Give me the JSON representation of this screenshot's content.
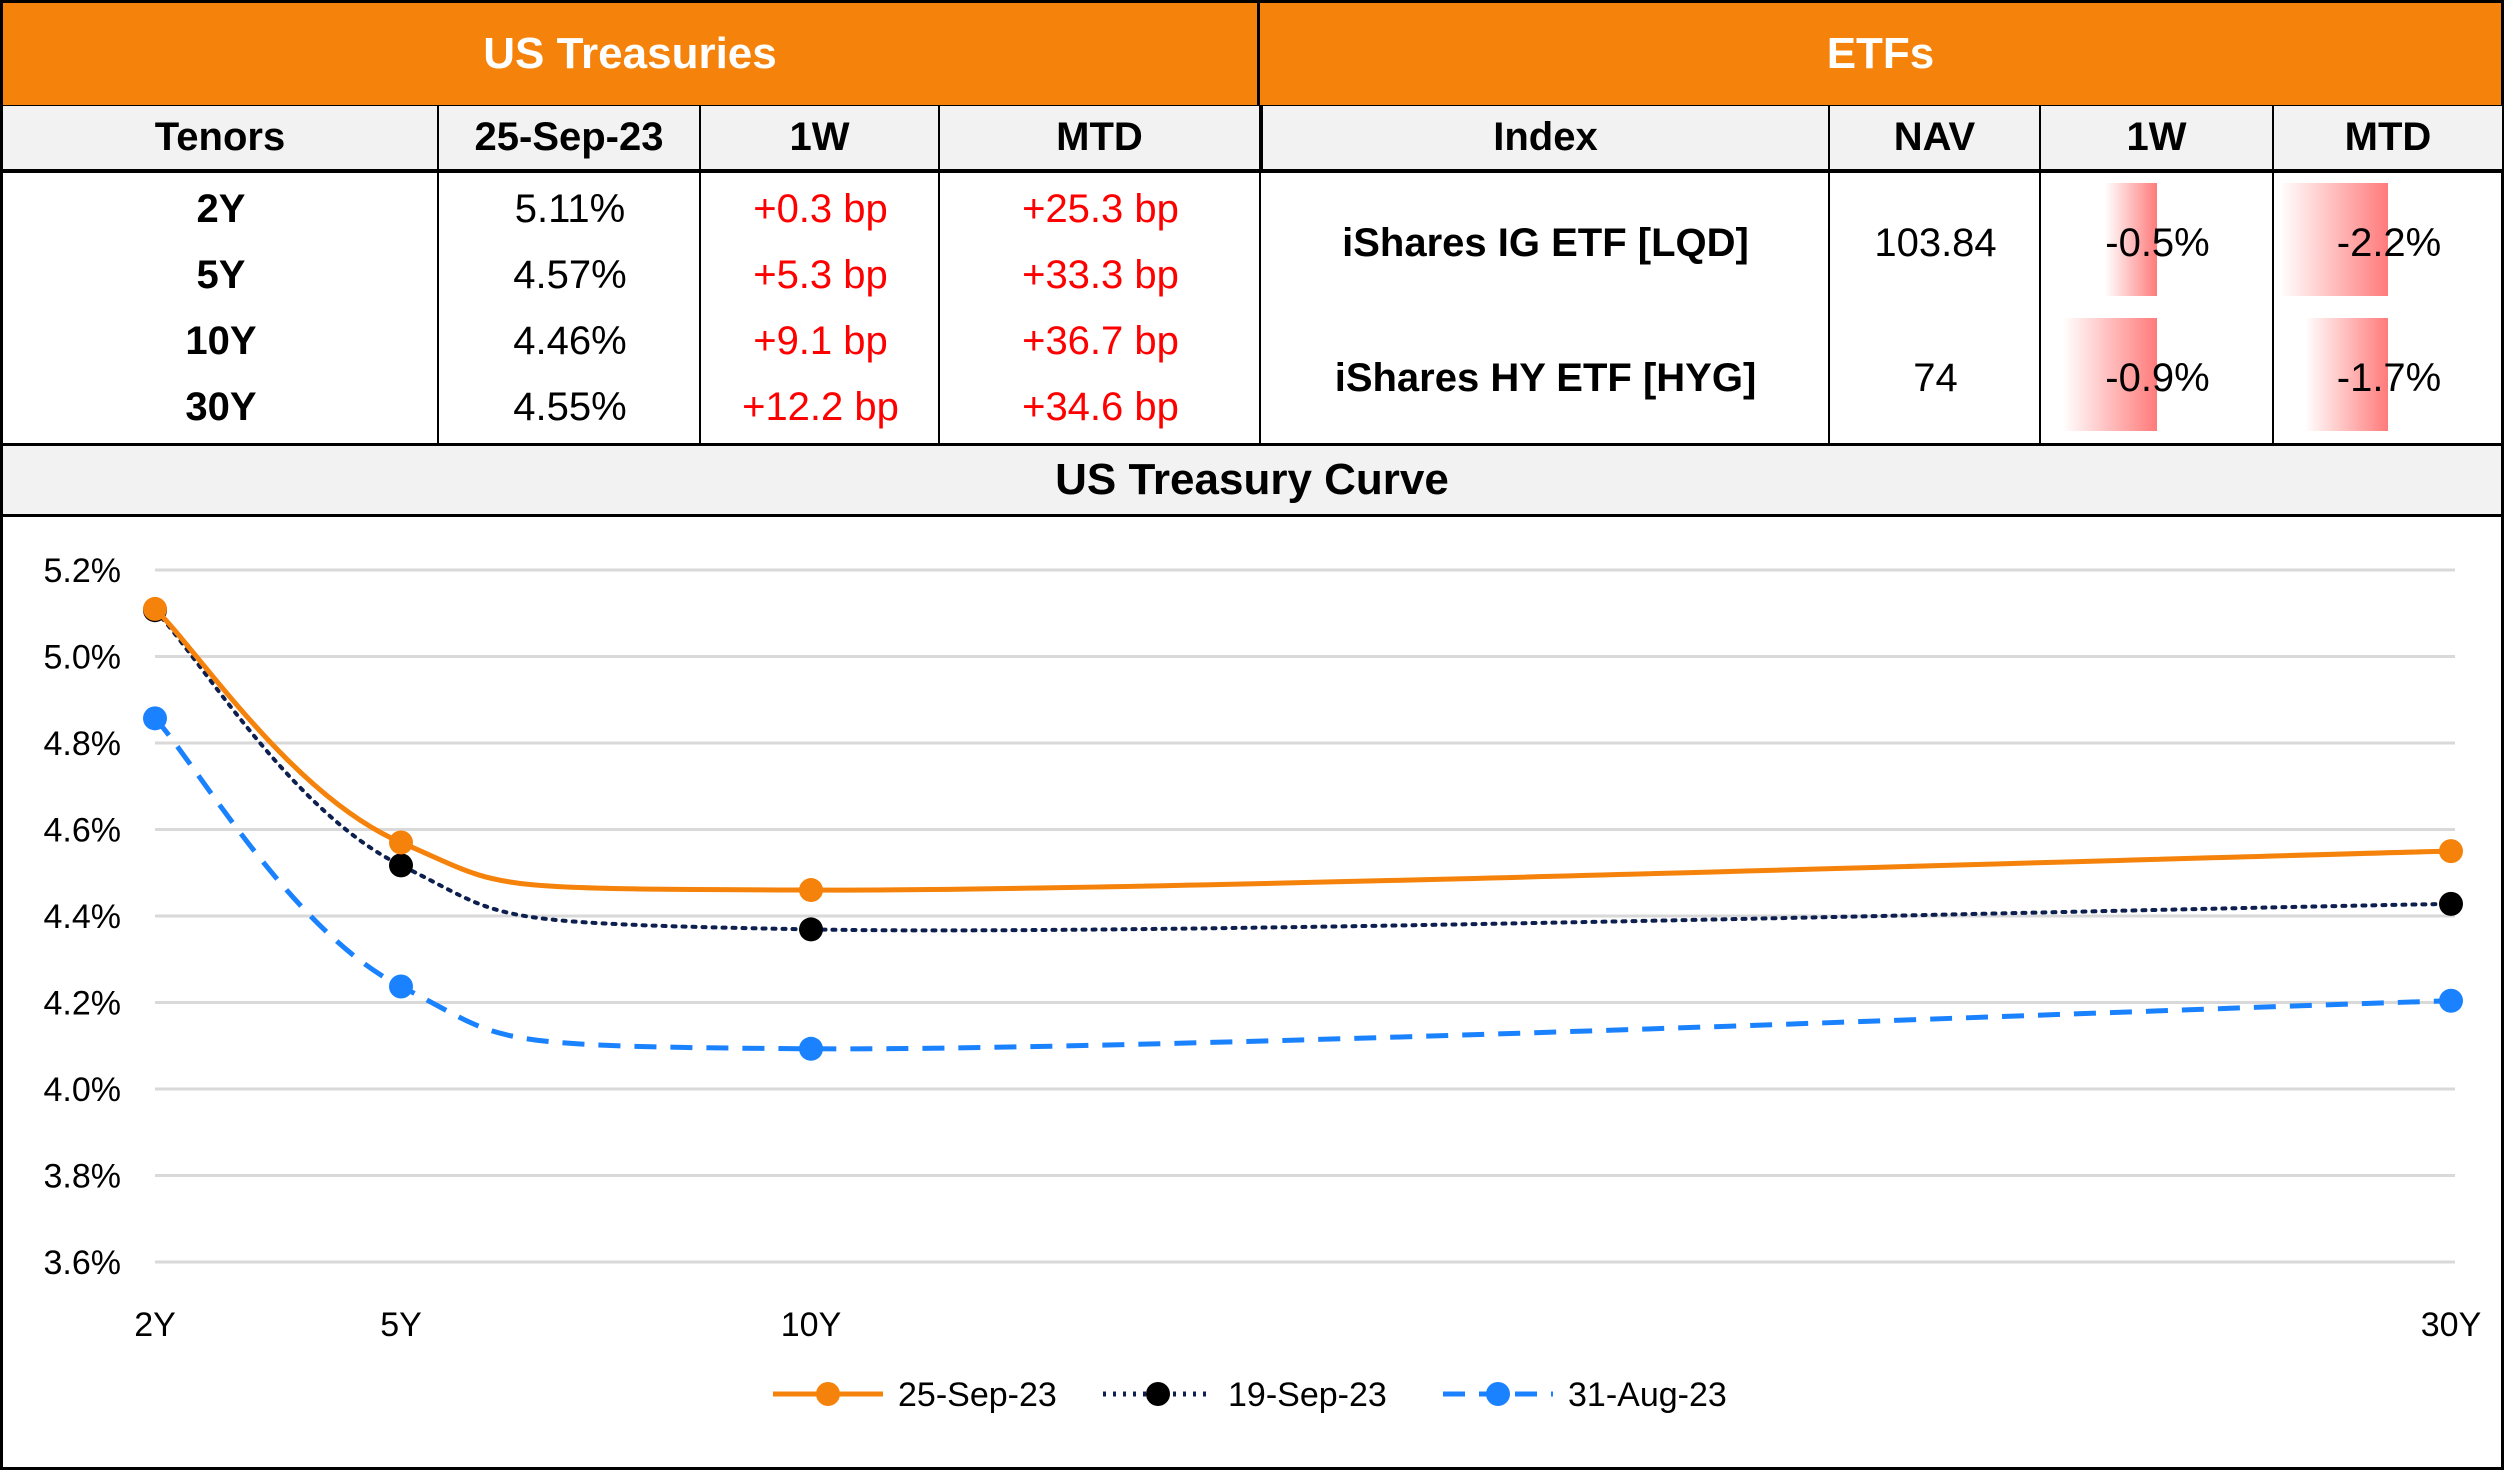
{
  "treasuries": {
    "title": "US Treasuries",
    "headers": [
      "Tenors",
      "25-Sep-23",
      "1W",
      "MTD"
    ],
    "rows": [
      [
        "2Y",
        "5.11%",
        "+0.3 bp",
        "+25.3 bp"
      ],
      [
        "5Y",
        "4.57%",
        "+5.3 bp",
        "+33.3 bp"
      ],
      [
        "10Y",
        "4.46%",
        "+9.1 bp",
        "+36.7 bp"
      ],
      [
        "30Y",
        "4.55%",
        "+12.2 bp",
        "+34.6 bp"
      ]
    ]
  },
  "etfs": {
    "title": "ETFs",
    "headers": [
      "Index",
      "NAV",
      "1W",
      "MTD"
    ],
    "rows": [
      {
        "name": "iShares IG ETF [LQD]",
        "nav": "103.84",
        "w1": "-0.5%",
        "mtd": "-2.2%",
        "w1_val": -0.5,
        "mtd_val": -2.2
      },
      {
        "name": "iShares HY ETF [HYG]",
        "nav": "74",
        "w1": "-0.9%",
        "mtd": "-1.7%",
        "w1_val": -0.9,
        "mtd_val": -1.7
      }
    ]
  },
  "chart_data": {
    "type": "line",
    "title": "US Treasury Curve",
    "categories": [
      "2Y",
      "5Y",
      "10Y",
      "30Y"
    ],
    "x": [
      2,
      5,
      10,
      30
    ],
    "ylim": [
      3.6,
      5.2
    ],
    "yticks": [
      "3.6%",
      "3.8%",
      "4.0%",
      "4.2%",
      "4.4%",
      "4.6%",
      "4.8%",
      "5.0%",
      "5.2%"
    ],
    "grid": true,
    "legend": "bottom",
    "series": [
      {
        "name": "25-Sep-23",
        "values": [
          5.11,
          4.57,
          4.46,
          4.55
        ],
        "color": "#f5820a",
        "style": "solid"
      },
      {
        "name": "19-Sep-23",
        "values": [
          5.107,
          4.517,
          4.369,
          4.428
        ],
        "color": "#0d1f4f",
        "style": "dotted"
      },
      {
        "name": "31-Aug-23",
        "values": [
          4.857,
          4.237,
          4.093,
          4.204
        ],
        "color": "#1a82ff",
        "style": "dashed"
      }
    ]
  }
}
